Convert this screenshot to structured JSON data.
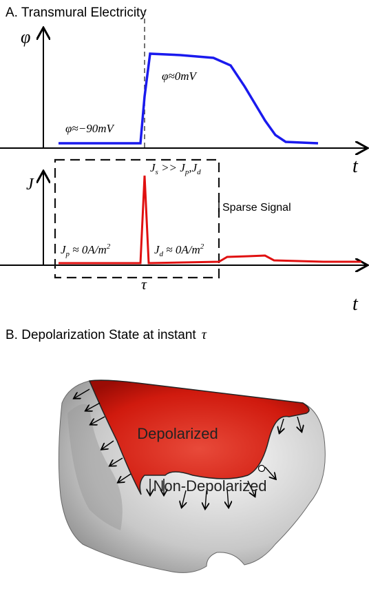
{
  "panel_a": {
    "title": "A. Transmural Electricity",
    "top_plot": {
      "y_label": "φ",
      "x_label": "t",
      "rest_label": "φ≈−90mV",
      "plateau_label": "φ≈0mV"
    },
    "bottom_plot": {
      "y_label": "J",
      "x_label": "t",
      "tau_label": "τ",
      "spike_label": {
        "symbol": "J",
        "sub": "s",
        "rest": " >> ",
        "symbol2": "J",
        "sub2": "p",
        "rest2": ",",
        "symbol3": "J",
        "sub3": "d"
      },
      "pre_label": {
        "symbol": "J",
        "sub": "p",
        "rest": " ≈ 0A/m",
        "sup": "2"
      },
      "post_label": {
        "symbol": "J",
        "sub": "d",
        "rest": " ≈ 0A/m",
        "sup": "2"
      },
      "box_label": "Sparse Signal"
    }
  },
  "panel_b": {
    "title": "B. Depolarization State at instant",
    "title_symbol": "τ",
    "depolarized_label": "Depolarized",
    "non_depolarized_label": "Non-Depolarized"
  }
}
